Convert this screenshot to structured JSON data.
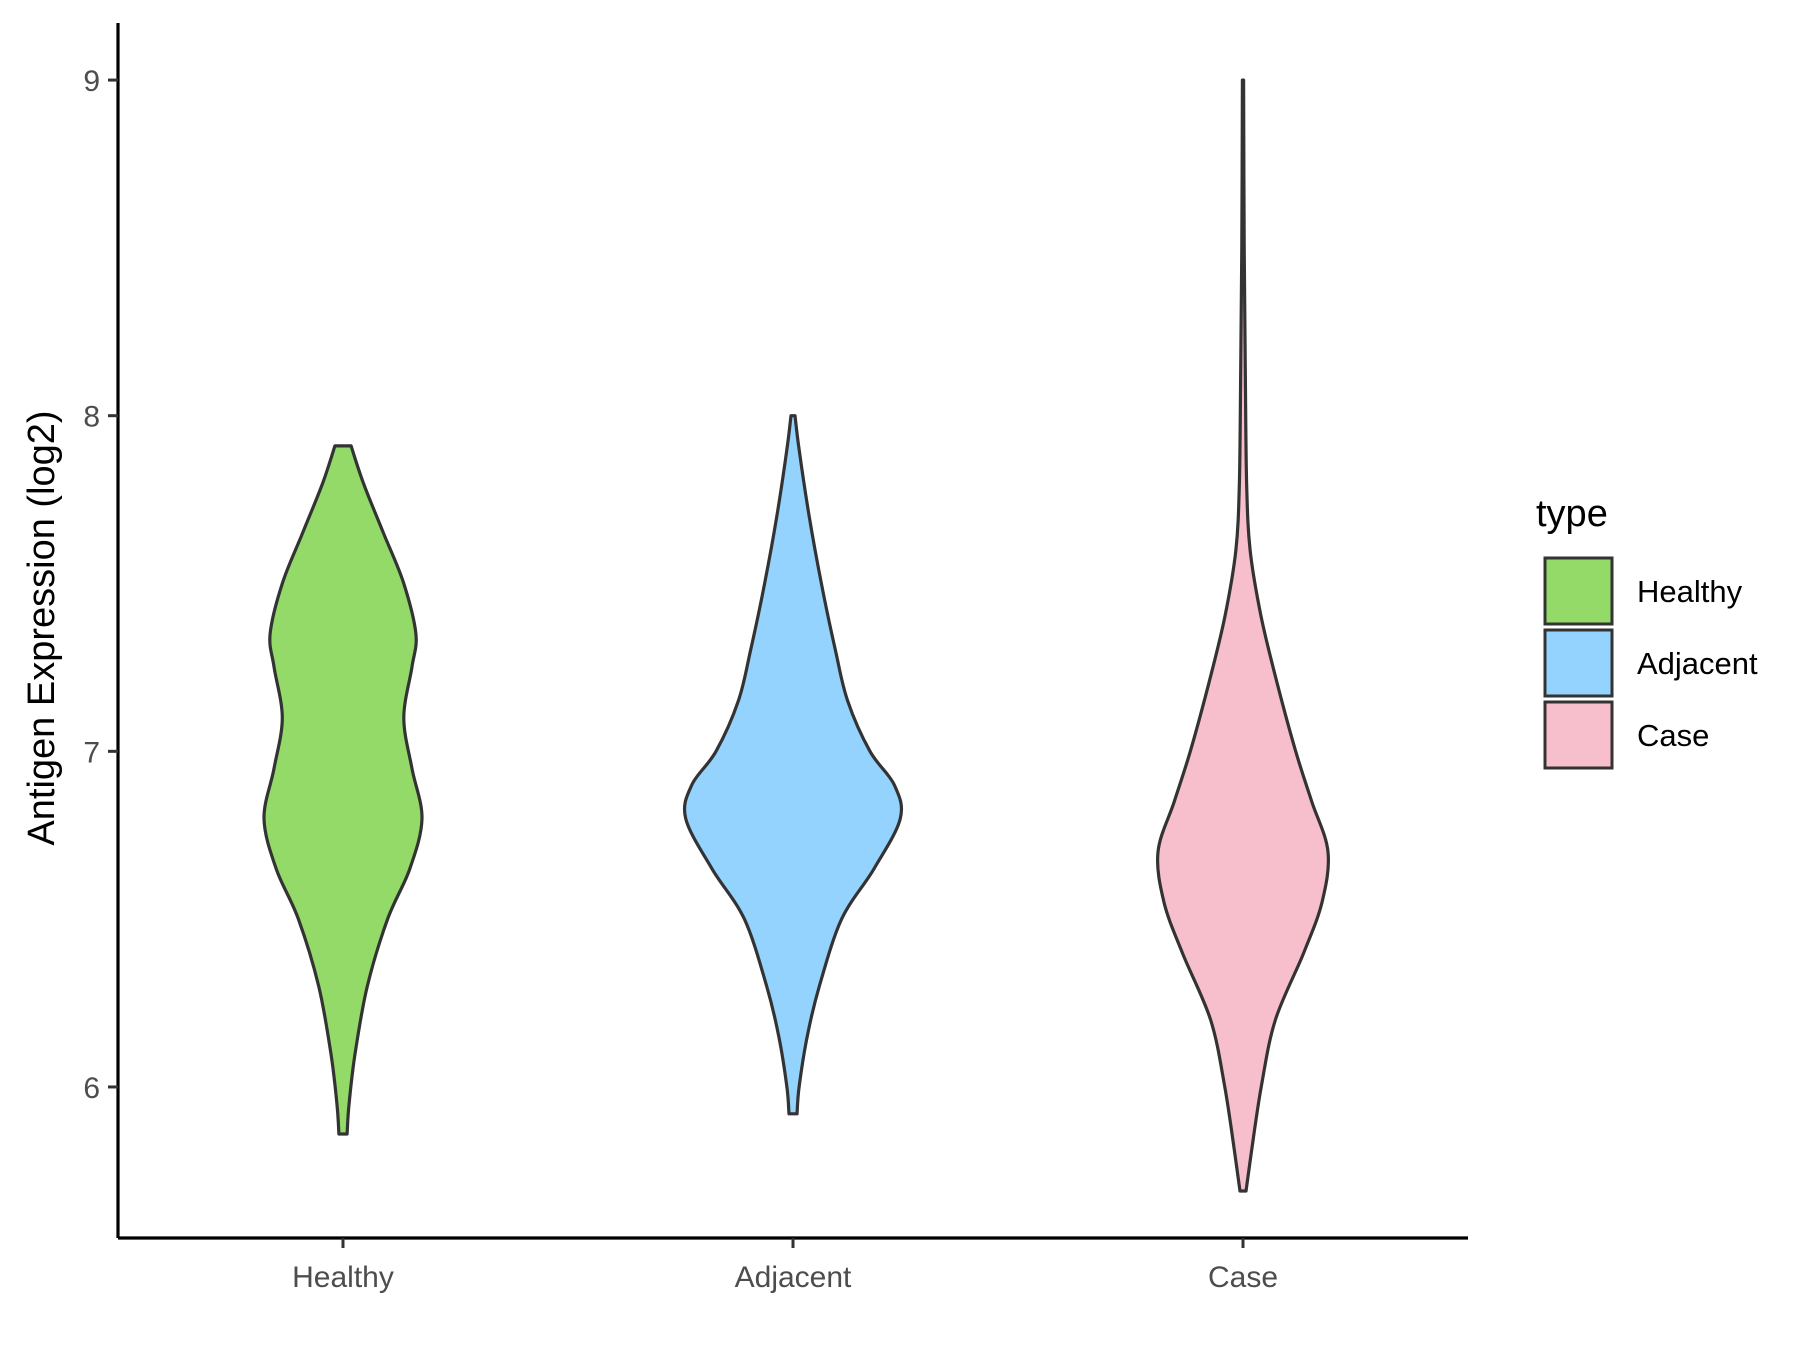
{
  "chart_data": {
    "type": "violin",
    "title": "",
    "xlabel": "",
    "ylabel": "Antigen Expression (log2)",
    "ylim": [
      5.55,
      9.17
    ],
    "y_ticks": [
      6,
      7,
      8,
      9
    ],
    "categories": [
      "Healthy",
      "Adjacent",
      "Case"
    ],
    "grid": false,
    "legend": {
      "title": "type",
      "placement": "right",
      "entries": [
        "Healthy",
        "Adjacent",
        "Case"
      ]
    },
    "series": [
      {
        "name": "Healthy",
        "color": "#93DA69",
        "density": [
          [
            5.86,
            0.02
          ],
          [
            5.95,
            0.03
          ],
          [
            6.1,
            0.06
          ],
          [
            6.3,
            0.12
          ],
          [
            6.5,
            0.22
          ],
          [
            6.65,
            0.33
          ],
          [
            6.8,
            0.39
          ],
          [
            6.95,
            0.34
          ],
          [
            7.1,
            0.3
          ],
          [
            7.25,
            0.34
          ],
          [
            7.35,
            0.36
          ],
          [
            7.5,
            0.3
          ],
          [
            7.65,
            0.2
          ],
          [
            7.8,
            0.1
          ],
          [
            7.91,
            0.04
          ]
        ]
      },
      {
        "name": "Adjacent",
        "color": "#93D3FD",
        "density": [
          [
            5.92,
            0.02
          ],
          [
            6.0,
            0.03
          ],
          [
            6.15,
            0.07
          ],
          [
            6.3,
            0.13
          ],
          [
            6.5,
            0.24
          ],
          [
            6.65,
            0.4
          ],
          [
            6.8,
            0.53
          ],
          [
            6.9,
            0.5
          ],
          [
            7.0,
            0.38
          ],
          [
            7.15,
            0.27
          ],
          [
            7.3,
            0.21
          ],
          [
            7.5,
            0.14
          ],
          [
            7.7,
            0.08
          ],
          [
            7.9,
            0.03
          ],
          [
            8.0,
            0.01
          ]
        ]
      },
      {
        "name": "Case",
        "color": "#F7BFCB",
        "density": [
          [
            5.69,
            0.015
          ],
          [
            5.8,
            0.04
          ],
          [
            6.0,
            0.09
          ],
          [
            6.2,
            0.16
          ],
          [
            6.4,
            0.3
          ],
          [
            6.55,
            0.39
          ],
          [
            6.7,
            0.42
          ],
          [
            6.85,
            0.34
          ],
          [
            7.0,
            0.26
          ],
          [
            7.2,
            0.17
          ],
          [
            7.4,
            0.09
          ],
          [
            7.6,
            0.035
          ],
          [
            7.8,
            0.018
          ],
          [
            8.1,
            0.012
          ],
          [
            8.5,
            0.006
          ],
          [
            9.0,
            0.003
          ]
        ]
      }
    ]
  }
}
